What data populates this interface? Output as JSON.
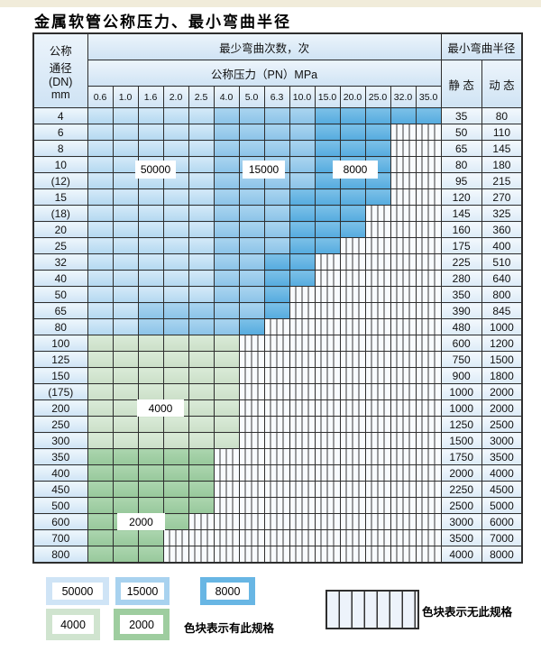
{
  "title": "金属软管公称压力、最小弯曲半径",
  "table": {
    "header": {
      "dn_label": "公称\n通径\n(DN)\nmm",
      "bend_cycles_label": "最少弯曲次数，次",
      "pressure_label": "公称压力（PN）MPa",
      "radius_label": "最小弯曲半径",
      "static_label": "静 态",
      "dynamic_label": "动 态",
      "pressures": [
        "0.6",
        "1.0",
        "1.6",
        "2.0",
        "2.5",
        "4.0",
        "5.0",
        "6.3",
        "10.0",
        "15.0",
        "20.0",
        "25.0",
        "32.0",
        "35.0"
      ]
    },
    "cell_code_meaning": {
      "L": "50000次",
      "M": "15000次",
      "D": "8000次",
      "G": "4000次",
      "g": "2000次",
      "H": "无此规格"
    },
    "rows": [
      {
        "dn": "4",
        "cells": "LLLLLMMMMDDDDD",
        "static": "35",
        "dynamic": "80"
      },
      {
        "dn": "6",
        "cells": "LLLLLMMMMDDDHH",
        "static": "50",
        "dynamic": "110"
      },
      {
        "dn": "8",
        "cells": "LLLLLMMMMDDDHH",
        "static": "65",
        "dynamic": "145"
      },
      {
        "dn": "10",
        "cells": "LLLLLMMMMDDDHH",
        "static": "80",
        "dynamic": "180"
      },
      {
        "dn": "(12)",
        "cells": "LLLLLMMMMDDDHH",
        "static": "95",
        "dynamic": "215"
      },
      {
        "dn": "15",
        "cells": "LLLLLMMMDDDDHH",
        "static": "120",
        "dynamic": "270"
      },
      {
        "dn": "(18)",
        "cells": "LLLLLMMMDDDHHH",
        "static": "145",
        "dynamic": "325"
      },
      {
        "dn": "20",
        "cells": "LLLLLMMMDDDHHH",
        "static": "160",
        "dynamic": "360"
      },
      {
        "dn": "25",
        "cells": "LLLLLMMMDDHHHH",
        "static": "175",
        "dynamic": "400"
      },
      {
        "dn": "32",
        "cells": "LLLLLMMDDHHHHH",
        "static": "225",
        "dynamic": "510"
      },
      {
        "dn": "40",
        "cells": "LLLLLMMDDHHHHH",
        "static": "280",
        "dynamic": "640"
      },
      {
        "dn": "50",
        "cells": "LLLLLMMDHHHHHH",
        "static": "350",
        "dynamic": "800"
      },
      {
        "dn": "65",
        "cells": "LLMMMMMDHHHHHH",
        "static": "390",
        "dynamic": "845"
      },
      {
        "dn": "80",
        "cells": "LLMMMMDHHHHHHH",
        "static": "480",
        "dynamic": "1000"
      },
      {
        "dn": "100",
        "cells": "GGGGGGHHHHHHHH",
        "static": "600",
        "dynamic": "1200"
      },
      {
        "dn": "125",
        "cells": "GGGGGGHHHHHHHH",
        "static": "750",
        "dynamic": "1500"
      },
      {
        "dn": "150",
        "cells": "GGGGGGHHHHHHHH",
        "static": "900",
        "dynamic": "1800"
      },
      {
        "dn": "(175)",
        "cells": "GGGGGGHHHHHHHH",
        "static": "1000",
        "dynamic": "2000"
      },
      {
        "dn": "200",
        "cells": "GGGGGGHHHHHHHH",
        "static": "1000",
        "dynamic": "2000"
      },
      {
        "dn": "250",
        "cells": "GGGGGGHHHHHHHH",
        "static": "1250",
        "dynamic": "2500"
      },
      {
        "dn": "300",
        "cells": "GGGGGGHHHHHHHH",
        "static": "1500",
        "dynamic": "3000"
      },
      {
        "dn": "350",
        "cells": "gggggHHHHHHHHH",
        "static": "1750",
        "dynamic": "3500"
      },
      {
        "dn": "400",
        "cells": "gggggHHHHHHHHH",
        "static": "2000",
        "dynamic": "4000"
      },
      {
        "dn": "450",
        "cells": "gggggHHHHHHHHH",
        "static": "2250",
        "dynamic": "4500"
      },
      {
        "dn": "500",
        "cells": "gggggHHHHHHHHH",
        "static": "2500",
        "dynamic": "5000"
      },
      {
        "dn": "600",
        "cells": "ggggHHHHHHHHHH",
        "static": "3000",
        "dynamic": "6000"
      },
      {
        "dn": "700",
        "cells": "gggHHHHHHHHHHH",
        "static": "3500",
        "dynamic": "7000"
      },
      {
        "dn": "800",
        "cells": "gggHHHHHHHHHHH",
        "static": "4000",
        "dynamic": "8000"
      }
    ]
  },
  "annotations": {
    "cycles_50000": "50000",
    "cycles_15000": "15000",
    "cycles_8000": "8000",
    "cycles_4000": "4000",
    "cycles_2000": "2000"
  },
  "legend": {
    "items": [
      {
        "label": "50000",
        "color": "#cfe4f6"
      },
      {
        "label": "15000",
        "color": "#a8d2ef"
      },
      {
        "label": "8000",
        "color": "#68b6e4"
      },
      {
        "label": "4000",
        "color": "#d0e4cf"
      },
      {
        "label": "2000",
        "color": "#9ecd9f"
      }
    ],
    "available_note": "色块表示有此规格",
    "unavailable_note": "色块表示无此规格"
  },
  "chart_data": {
    "type": "table",
    "title": "金属软管公称压力、最小弯曲半径",
    "x_columns_pn_mpa": [
      0.6,
      1.0,
      1.6,
      2.0,
      2.5,
      4.0,
      5.0,
      6.3,
      10.0,
      15.0,
      20.0,
      25.0,
      32.0,
      35.0
    ],
    "y_rows_dn_mm": [
      "4",
      "6",
      "8",
      "10",
      "(12)",
      "15",
      "(18)",
      "20",
      "25",
      "32",
      "40",
      "50",
      "65",
      "80",
      "100",
      "125",
      "150",
      "(175)",
      "200",
      "250",
      "300",
      "350",
      "400",
      "450",
      "500",
      "600",
      "700",
      "800"
    ],
    "cell_value_key": {
      "L": 50000,
      "M": 15000,
      "D": 8000,
      "G": 4000,
      "g": 2000,
      "H": null
    },
    "bend_cycle_codes_per_row": [
      "LLLLLMMMMDDDDD",
      "LLLLLMMMMDDDHH",
      "LLLLLMMMMDDDHH",
      "LLLLLMMMMDDDHH",
      "LLLLLMMMMDDDHH",
      "LLLLLMMMDDDDHH",
      "LLLLLMMMDDDHHH",
      "LLLLLMMMDDDHHH",
      "LLLLLMMMDDHHHH",
      "LLLLLMMDDHHHHH",
      "LLLLLMMDDHHHHH",
      "LLLLLMMDHHHHHH",
      "LLMMMMMDHHHHHH",
      "LLMMMMDHHHHHHH",
      "GGGGGGHHHHHHHH",
      "GGGGGGHHHHHHHH",
      "GGGGGGHHHHHHHH",
      "GGGGGGHHHHHHHH",
      "GGGGGGHHHHHHHH",
      "GGGGGGHHHHHHHH",
      "GGGGGGHHHHHHHH",
      "gggggHHHHHHHHH",
      "gggggHHHHHHHHH",
      "gggggHHHHHHHHH",
      "gggggHHHHHHHHH",
      "ggggHHHHHHHHHH",
      "gggHHHHHHHHHHH",
      "gggHHHHHHHHHHH"
    ],
    "static_radius_mm": [
      35,
      50,
      65,
      80,
      95,
      120,
      145,
      160,
      175,
      225,
      280,
      350,
      390,
      480,
      600,
      750,
      900,
      1000,
      1000,
      1250,
      1500,
      1750,
      2000,
      2250,
      2500,
      3000,
      3500,
      4000
    ],
    "dynamic_radius_mm": [
      80,
      110,
      145,
      180,
      215,
      270,
      325,
      360,
      400,
      510,
      640,
      800,
      845,
      1000,
      1200,
      1500,
      1800,
      2000,
      2000,
      2500,
      3000,
      3500,
      4000,
      4500,
      5000,
      6000,
      7000,
      8000
    ],
    "legend_position": "bottom",
    "grid": true
  }
}
